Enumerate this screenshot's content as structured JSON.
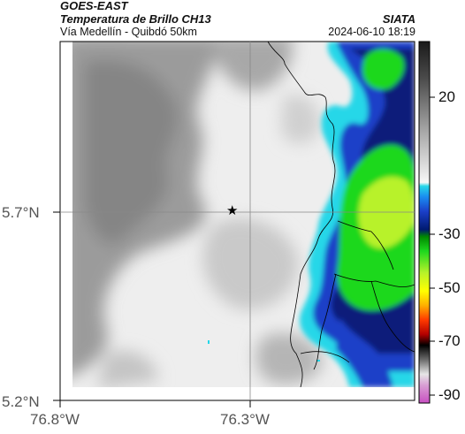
{
  "header": {
    "satellite": "GOES-EAST",
    "product": "Temperatura de Brillo CH13",
    "route": "Vía Medellín - Quibdó 50km",
    "agency": "SIATA",
    "datetime": "2024-06-10 18:19"
  },
  "map": {
    "lat_ticks": [
      {
        "value": 5.7,
        "label": "5.7°N"
      },
      {
        "value": 5.2,
        "label": "5.2°N"
      }
    ],
    "lon_ticks": [
      {
        "value": -76.8,
        "label": "76.8°W"
      },
      {
        "value": -76.3,
        "label": "76.3°W"
      }
    ],
    "extent": {
      "lon_min": -76.8,
      "lon_max": -75.85,
      "lat_min": 5.2,
      "lat_max": 6.15
    },
    "gridlines": true,
    "marker": {
      "symbol": "★",
      "label": ""
    },
    "colors": {
      "cloud_gray": "#b8b8b8",
      "clear_white": "#f2f2f2",
      "cyan": "#25d7e8",
      "blue": "#1b3fc8",
      "navy": "#0a1a7a",
      "green": "#1ed81e",
      "lime": "#b8f22a"
    }
  },
  "colorbar": {
    "ticks": [
      {
        "value": 20,
        "label": "20"
      },
      {
        "value": -30,
        "label": "-30"
      },
      {
        "value": -50,
        "label": "-50"
      },
      {
        "value": -70,
        "label": "-70"
      },
      {
        "value": -90,
        "label": "-90"
      }
    ]
  }
}
